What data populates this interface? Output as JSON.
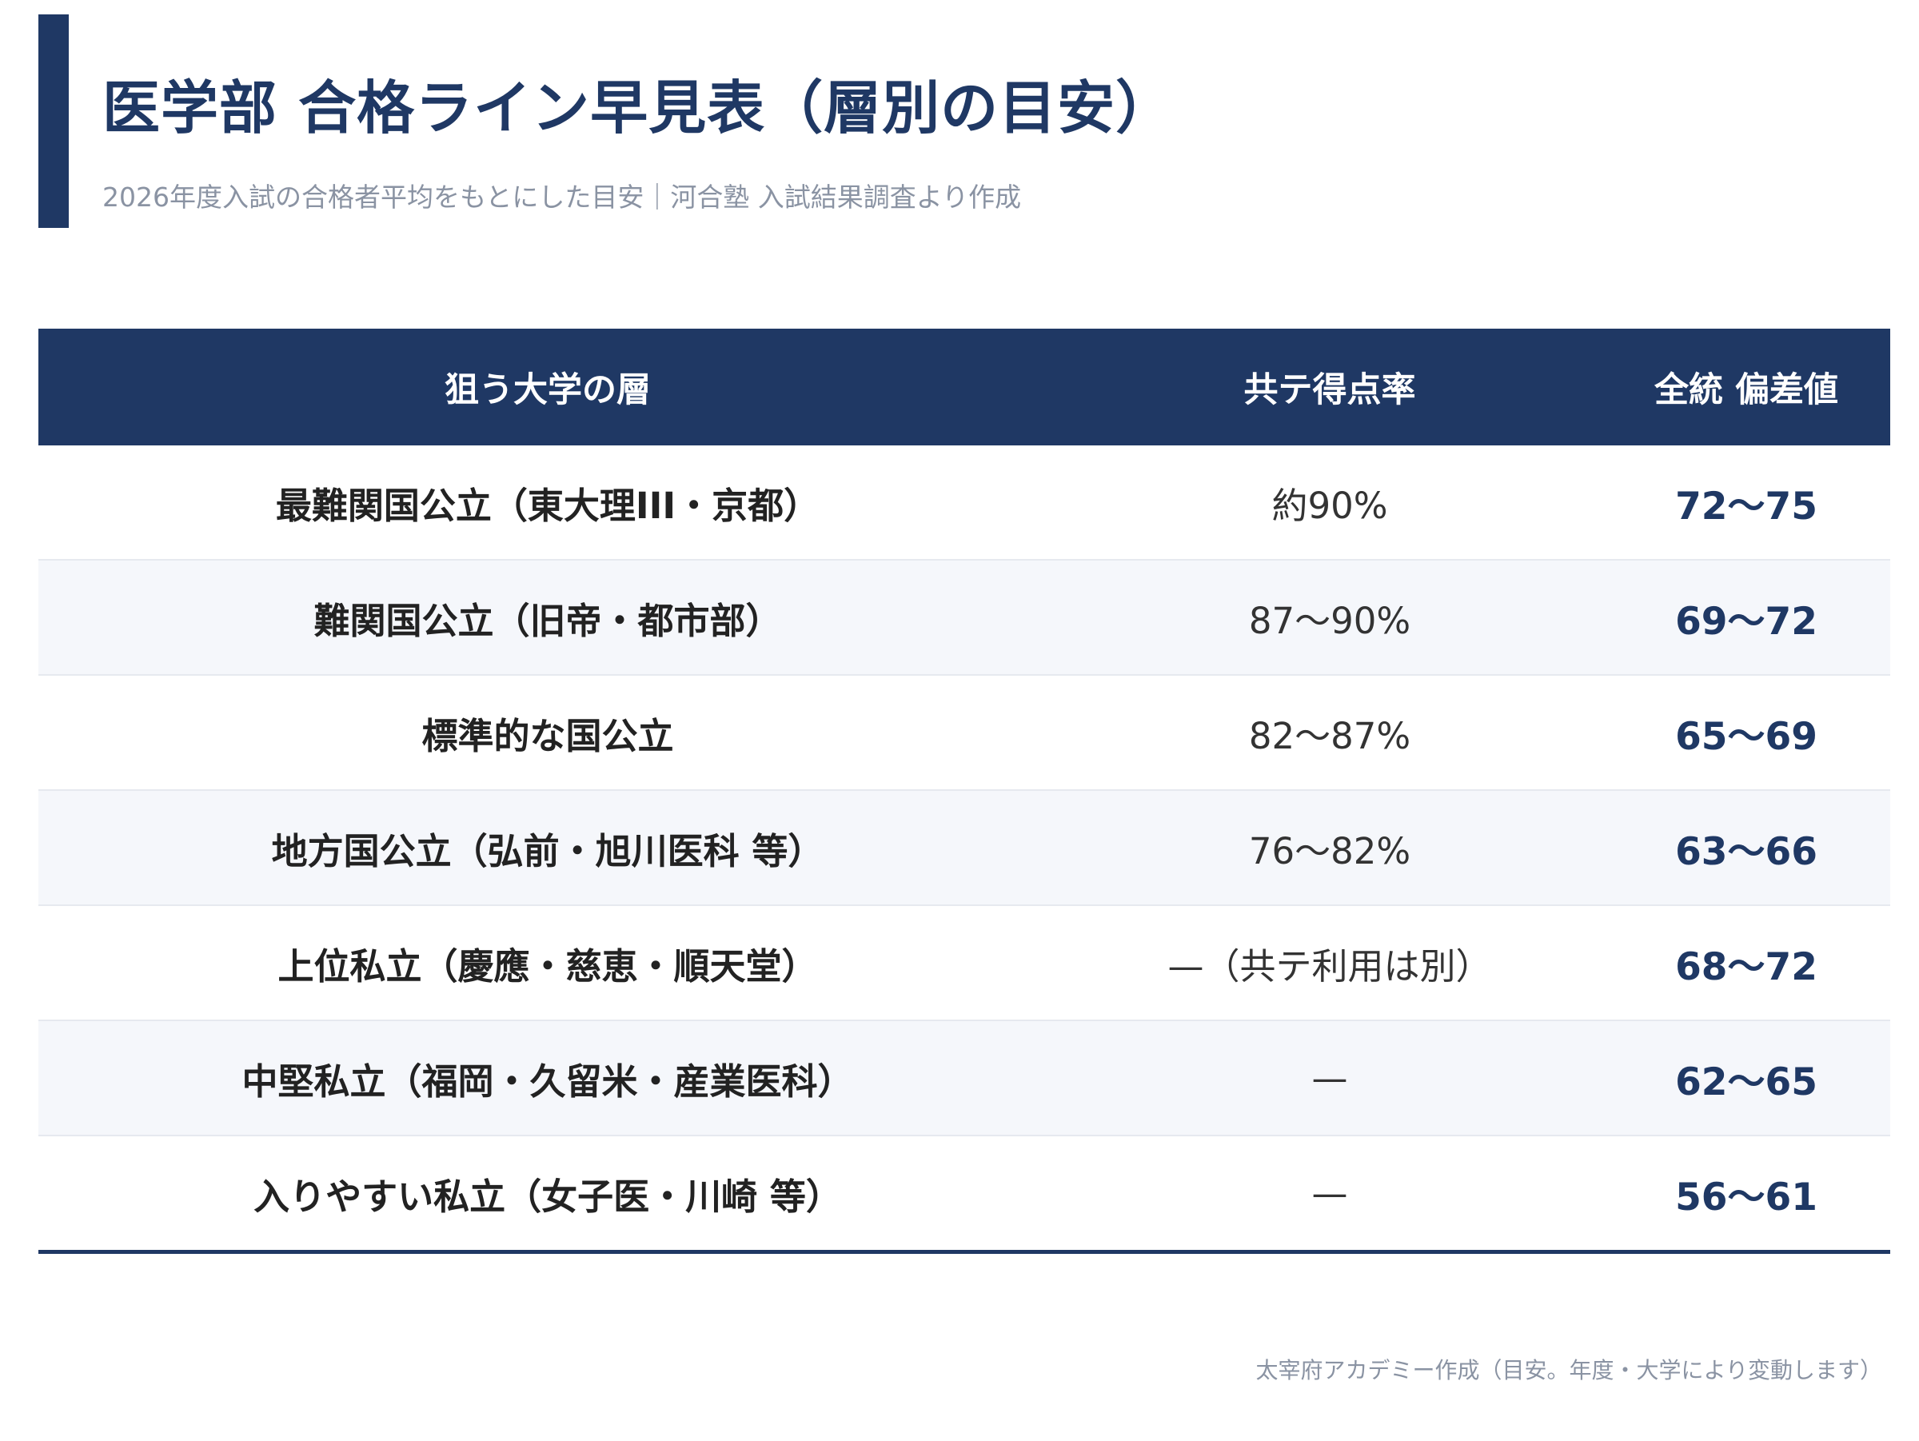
{
  "header": {
    "title": "医学部 合格ライン早見表（層別の目安）",
    "subtitle": "2026年度入試の合格者平均をもとにした目安｜河合塾 入試結果調査より作成"
  },
  "table": {
    "columns": [
      "狙う大学の層",
      "共テ得点率",
      "全統 偏差値"
    ],
    "rows": [
      {
        "tier": "最難関国公立（東大理III・京都）",
        "rate": "約90%",
        "deviation": "72〜75"
      },
      {
        "tier": "難関国公立（旧帝・都市部）",
        "rate": "87〜90%",
        "deviation": "69〜72"
      },
      {
        "tier": "標準的な国公立",
        "rate": "82〜87%",
        "deviation": "65〜69"
      },
      {
        "tier": "地方国公立（弘前・旭川医科 等）",
        "rate": "76〜82%",
        "deviation": "63〜66"
      },
      {
        "tier": "上位私立（慶應・慈恵・順天堂）",
        "rate": "—（共テ利用は別）",
        "deviation": "68〜72"
      },
      {
        "tier": "中堅私立（福岡・久留米・産業医科）",
        "rate": "—",
        "deviation": "62〜65"
      },
      {
        "tier": "入りやすい私立（女子医・川崎 等）",
        "rate": "—",
        "deviation": "56〜61"
      }
    ]
  },
  "footer": {
    "note": "太宰府アカデミー作成（目安。年度・大学により変動します）"
  },
  "colors": {
    "accent": "#1f3864",
    "muted_text": "#8a93a3",
    "stripe": "#f5f7fb"
  }
}
